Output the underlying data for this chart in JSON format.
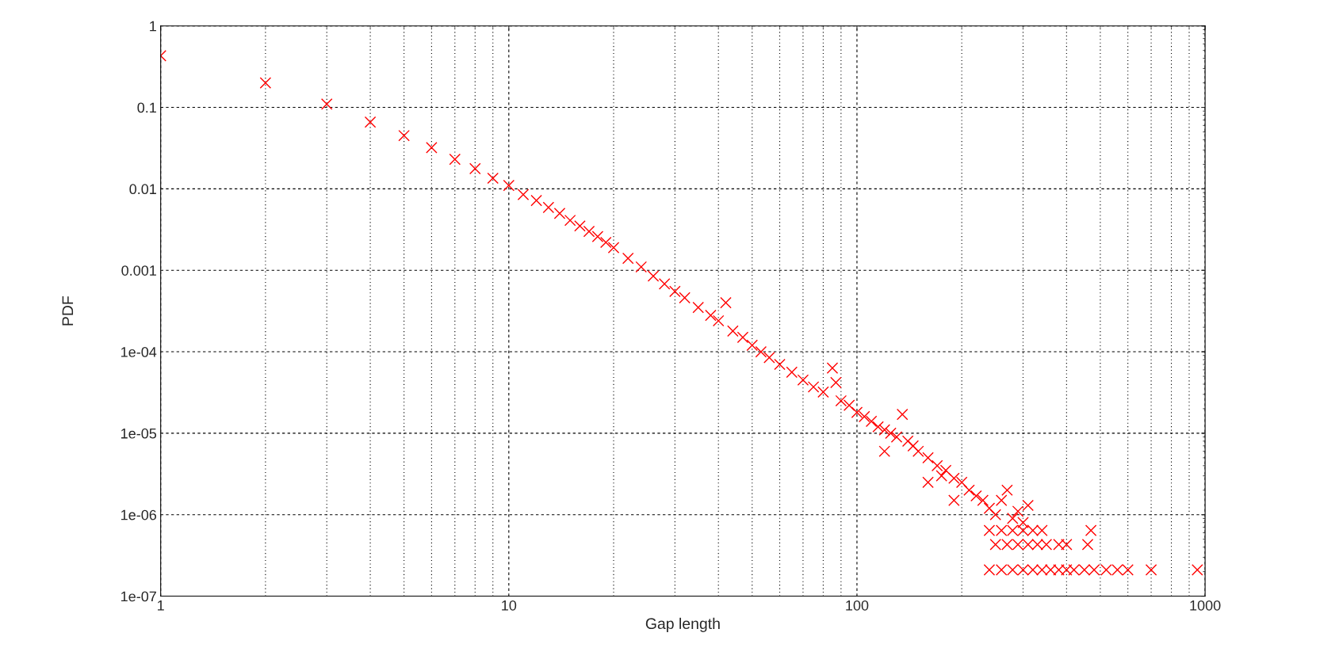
{
  "chart_data": {
    "type": "scatter",
    "xlabel": "Gap length",
    "ylabel": "PDF",
    "log": "xy",
    "marker": "cross",
    "grid": true,
    "xlim": [
      1,
      1000
    ],
    "xticks": [
      1,
      10,
      100,
      1000
    ],
    "ylim": [
      1e-07,
      1
    ],
    "yticks": [
      {
        "value": 1,
        "label": "1"
      },
      {
        "value": 0.1,
        "label": "0.1"
      },
      {
        "value": 0.01,
        "label": "0.01"
      },
      {
        "value": 0.001,
        "label": "0.001"
      },
      {
        "value": 0.0001,
        "label": "1e-04"
      },
      {
        "value": 1e-05,
        "label": "1e-05"
      },
      {
        "value": 1e-06,
        "label": "1e-06"
      },
      {
        "value": 1e-07,
        "label": "1e-07"
      }
    ],
    "series": [
      {
        "color": "#ff0000",
        "x": [
          1,
          2,
          3,
          4,
          5,
          6,
          7,
          8,
          9,
          10,
          11,
          12,
          13,
          14,
          15,
          16,
          17,
          18,
          19,
          20,
          22,
          24,
          26,
          28,
          30,
          32,
          35,
          38,
          40,
          42,
          44,
          47,
          50,
          53,
          56,
          60,
          65,
          70,
          75,
          80,
          85,
          87,
          90,
          95,
          100,
          105,
          110,
          115,
          120,
          125,
          130,
          135,
          140,
          145,
          150,
          160,
          170,
          175,
          180,
          190,
          200,
          210,
          220,
          230,
          240,
          250,
          260,
          270,
          280,
          290,
          300,
          310,
          240,
          260,
          280,
          300,
          320,
          340,
          250,
          270,
          290,
          310,
          330,
          350,
          380,
          400,
          460,
          240,
          260,
          280,
          300,
          320,
          340,
          360,
          380,
          400,
          420,
          450,
          480,
          520,
          560,
          600,
          700,
          950,
          470,
          120,
          160,
          190
        ],
        "values": [
          0.43,
          0.2,
          0.11,
          0.066,
          0.045,
          0.032,
          0.023,
          0.0177,
          0.0135,
          0.011,
          0.0085,
          0.0072,
          0.0059,
          0.005,
          0.0041,
          0.0035,
          0.003,
          0.0026,
          0.0022,
          0.0019,
          0.0014,
          0.0011,
          0.00085,
          0.00068,
          0.00055,
          0.00046,
          0.00035,
          0.00028,
          0.00024,
          0.0004,
          0.00018,
          0.00015,
          0.00012,
          0.0001,
          8.5e-05,
          7e-05,
          5.6e-05,
          4.5e-05,
          3.7e-05,
          3.2e-05,
          6.3e-05,
          4.2e-05,
          2.5e-05,
          2.2e-05,
          1.8e-05,
          1.6e-05,
          1.4e-05,
          1.2e-05,
          1.1e-05,
          1e-05,
          9e-06,
          1.7e-05,
          8e-06,
          7e-06,
          6e-06,
          5e-06,
          4e-06,
          3e-06,
          3.5e-06,
          2.8e-06,
          2.5e-06,
          2e-06,
          1.7e-06,
          1.5e-06,
          1.2e-06,
          1e-06,
          1.5e-06,
          2e-06,
          9e-07,
          1.1e-06,
          8e-07,
          1.3e-06,
          6.4e-07,
          6.4e-07,
          6.4e-07,
          6.4e-07,
          6.4e-07,
          6.4e-07,
          4.3e-07,
          4.3e-07,
          4.3e-07,
          4.3e-07,
          4.3e-07,
          4.3e-07,
          4.3e-07,
          4.3e-07,
          4.3e-07,
          2.1e-07,
          2.1e-07,
          2.1e-07,
          2.1e-07,
          2.1e-07,
          2.1e-07,
          2.1e-07,
          2.1e-07,
          2.1e-07,
          2.1e-07,
          2.1e-07,
          2.1e-07,
          2.1e-07,
          2.1e-07,
          2.1e-07,
          2.1e-07,
          2.1e-07,
          6.4e-07,
          6e-06,
          2.5e-06,
          1.5e-06
        ]
      }
    ]
  }
}
